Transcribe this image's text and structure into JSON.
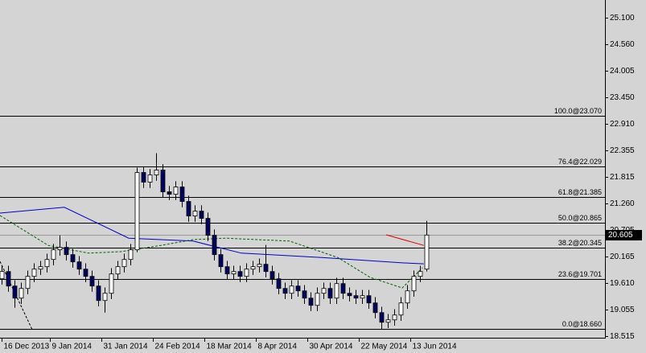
{
  "chart_data": {
    "type": "candlestick",
    "xlim": [
      -0.25,
      93.75
    ],
    "ylim": [
      18.48,
      25.47
    ],
    "xticks": [
      {
        "value": 0,
        "label": "16 Dec 2013"
      },
      {
        "value": 7.5,
        "label": "9 Jan 2014"
      },
      {
        "value": 15.5,
        "label": "31 Jan 2014"
      },
      {
        "value": 23.5,
        "label": "24 Feb 2014"
      },
      {
        "value": 31.5,
        "label": "18 Mar 2014"
      },
      {
        "value": 39.5,
        "label": "8 Apr 2014"
      },
      {
        "value": 47.5,
        "label": "30 Apr 2014"
      },
      {
        "value": 55.5,
        "label": "22 May 2014"
      },
      {
        "value": 63.5,
        "label": "13 Jun 2014"
      }
    ],
    "yticks": [
      {
        "value": 25.1,
        "label": "25.100"
      },
      {
        "value": 24.56,
        "label": "24.560"
      },
      {
        "value": 24.005,
        "label": "24.005"
      },
      {
        "value": 23.45,
        "label": "23.450"
      },
      {
        "value": 22.91,
        "label": "22.910"
      },
      {
        "value": 22.355,
        "label": "22.355"
      },
      {
        "value": 21.815,
        "label": "21.815"
      },
      {
        "value": 21.26,
        "label": "21.260"
      },
      {
        "value": 20.705,
        "label": "20.705"
      },
      {
        "value": 20.165,
        "label": "20.165"
      },
      {
        "value": 19.61,
        "label": "19.610"
      },
      {
        "value": 19.055,
        "label": "19.055"
      },
      {
        "value": 18.515,
        "label": "18.515"
      }
    ],
    "up_color": "#ffffff",
    "down_color": "#000060",
    "open": [
      19.7,
      19.85,
      19.55,
      19.3,
      19.5,
      19.75,
      19.9,
      19.95,
      20.1,
      20.3,
      20.35,
      20.2,
      20.05,
      19.9,
      19.75,
      19.55,
      19.25,
      19.4,
      19.8,
      19.95,
      20.1,
      20.3,
      21.9,
      21.7,
      21.85,
      21.95,
      21.5,
      21.45,
      21.6,
      21.3,
      21.0,
      21.1,
      20.95,
      20.6,
      20.2,
      19.95,
      19.8,
      19.85,
      19.75,
      19.9,
      19.95,
      20.0,
      19.85,
      19.7,
      19.5,
      19.4,
      19.55,
      19.45,
      19.3,
      19.15,
      19.4,
      19.5,
      19.3,
      19.6,
      19.4,
      19.35,
      19.3,
      19.35,
      19.2,
      19.0,
      18.8,
      18.85,
      18.95,
      19.2,
      19.45,
      19.75,
      19.9
    ],
    "high": [
      19.97,
      19.97,
      19.67,
      19.62,
      19.87,
      20.02,
      20.07,
      20.22,
      20.42,
      20.6,
      20.47,
      20.32,
      20.17,
      20.02,
      19.87,
      19.67,
      19.52,
      19.92,
      20.07,
      20.22,
      20.42,
      22.0,
      22.02,
      21.97,
      22.3,
      22.07,
      21.62,
      21.72,
      21.72,
      21.42,
      21.22,
      21.22,
      21.07,
      20.72,
      20.32,
      20.07,
      19.97,
      19.97,
      20.02,
      20.07,
      20.12,
      20.4,
      19.97,
      19.82,
      19.62,
      19.67,
      19.67,
      19.57,
      19.42,
      19.52,
      19.62,
      19.62,
      19.72,
      19.72,
      19.52,
      19.47,
      19.47,
      19.47,
      19.32,
      19.12,
      18.97,
      19.07,
      19.32,
      19.57,
      19.87,
      19.97,
      20.9
    ],
    "low": [
      19.58,
      19.43,
      19.1,
      19.18,
      19.38,
      19.63,
      19.78,
      19.83,
      19.98,
      20.18,
      20.08,
      19.93,
      19.78,
      19.63,
      19.43,
      19.13,
      19.0,
      19.28,
      19.68,
      19.83,
      19.98,
      20.25,
      21.58,
      21.58,
      21.73,
      21.38,
      21.33,
      21.33,
      21.18,
      20.88,
      20.88,
      20.83,
      20.48,
      20.08,
      19.83,
      19.68,
      19.68,
      19.63,
      19.63,
      19.78,
      19.83,
      19.73,
      19.58,
      19.38,
      19.28,
      19.28,
      19.33,
      19.18,
      19.03,
      19.03,
      19.28,
      19.18,
      19.18,
      19.28,
      19.23,
      19.18,
      19.18,
      19.08,
      18.88,
      18.65,
      18.68,
      18.73,
      18.83,
      19.08,
      19.33,
      19.63,
      19.85
    ],
    "close": [
      19.85,
      19.55,
      19.3,
      19.5,
      19.75,
      19.9,
      19.95,
      20.1,
      20.3,
      20.35,
      20.2,
      20.05,
      19.9,
      19.75,
      19.55,
      19.25,
      19.4,
      19.8,
      19.95,
      20.1,
      20.3,
      21.9,
      21.7,
      21.85,
      21.95,
      21.5,
      21.45,
      21.6,
      21.3,
      21.0,
      21.1,
      20.95,
      20.6,
      20.2,
      19.95,
      19.8,
      19.85,
      19.75,
      19.9,
      19.95,
      20.0,
      19.85,
      19.7,
      19.5,
      19.4,
      19.55,
      19.45,
      19.3,
      19.15,
      19.4,
      19.5,
      19.3,
      19.6,
      19.4,
      19.35,
      19.3,
      19.35,
      19.2,
      19.0,
      18.8,
      18.85,
      18.95,
      19.2,
      19.45,
      19.75,
      19.85,
      20.605
    ],
    "series": [
      {
        "color": "#0000cc",
        "dash": false,
        "x": [
          -0.25,
          9.75,
          19.75,
          29.75,
          37.25,
          49.75,
          62.25,
          65.6
        ],
        "values": [
          21.06,
          21.18,
          20.54,
          20.48,
          20.23,
          20.14,
          20.03,
          20.01
        ]
      },
      {
        "color": "#006400",
        "dash": true,
        "x": [
          -0.25,
          7.25,
          13.5,
          18.5,
          24.75,
          29.75,
          34.75,
          44.75,
          52.25,
          57.25,
          62.25,
          65.4
        ],
        "values": [
          21.01,
          20.39,
          20.23,
          20.26,
          20.39,
          20.51,
          20.54,
          20.48,
          20.14,
          19.73,
          19.51,
          19.93
        ]
      },
      {
        "color": "#e00000",
        "dash": false,
        "x": [
          59.75,
          65.6
        ],
        "values": [
          20.61,
          20.39
        ]
      },
      {
        "color": "#000000",
        "dash": true,
        "x": [
          -0.25,
          4.75
        ],
        "values": [
          20.06,
          18.65
        ]
      }
    ],
    "levels": [
      {
        "label": "100.0@23.070",
        "value": 23.07
      },
      {
        "label": "76.4@22.029",
        "value": 22.029
      },
      {
        "label": "61.8@21.385",
        "value": 21.385
      },
      {
        "label": "50.0@20.865",
        "value": 20.865
      },
      {
        "label": "38.2@20.345",
        "value": 20.345
      },
      {
        "label": "23.6@19.701",
        "value": 19.701
      },
      {
        "label": "0.0@18.660",
        "value": 18.66
      }
    ],
    "current_price": 20.605
  }
}
